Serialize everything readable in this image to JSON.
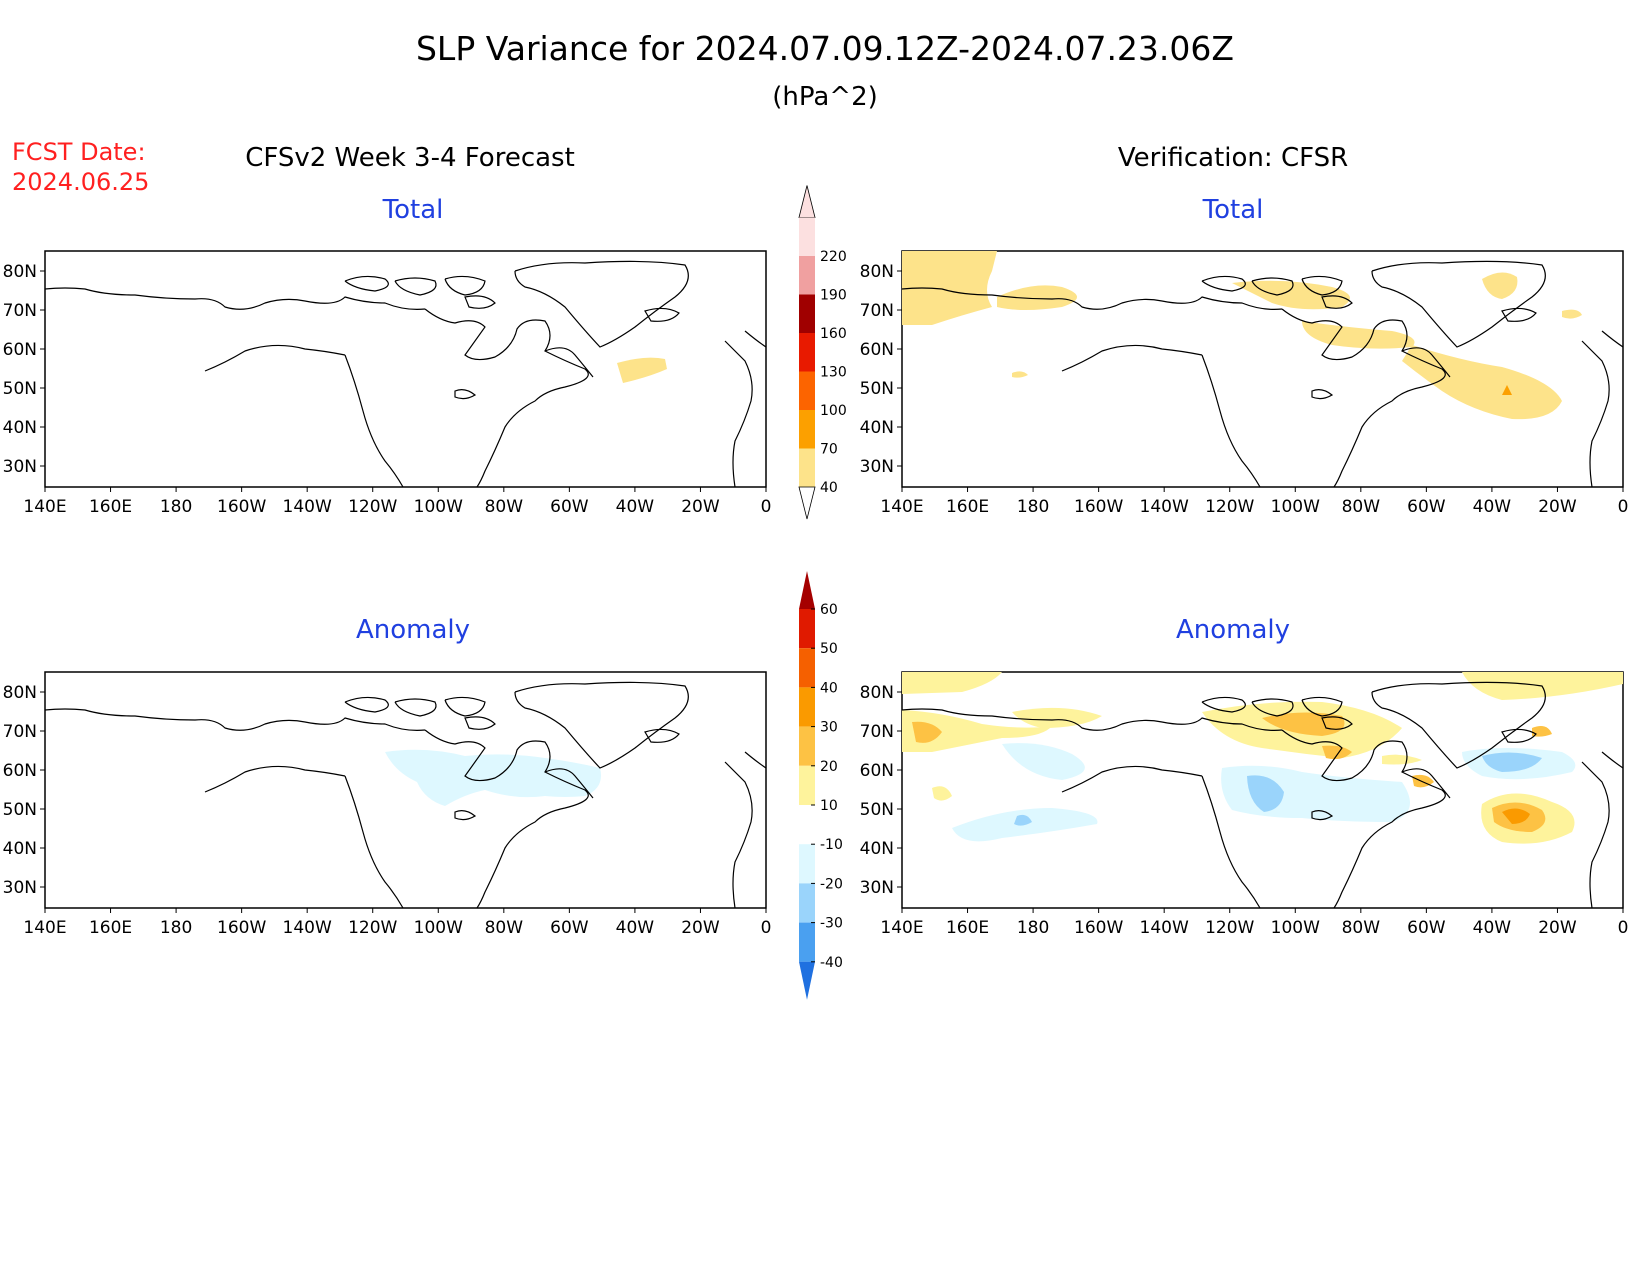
{
  "header": {
    "title": "SLP Variance for 2024.07.09.12Z-2024.07.23.06Z",
    "units": "(hPa^2)",
    "fcst_label": "FCST Date:",
    "fcst_date": "2024.06.25",
    "left_column_title": "CFSv2 Week 3-4 Forecast",
    "right_column_title": "Verification: CFSR"
  },
  "panels": {
    "forecast_total": {
      "subtitle": "Total"
    },
    "verification_total": {
      "subtitle": "Total"
    },
    "forecast_anomaly": {
      "subtitle": "Anomaly"
    },
    "verification_anomaly": {
      "subtitle": "Anomaly"
    }
  },
  "axes": {
    "lon_labels": [
      "140E",
      "160E",
      "180",
      "160W",
      "140W",
      "120W",
      "100W",
      "80W",
      "60W",
      "40W",
      "20W",
      "0"
    ],
    "lat_labels": [
      "80N",
      "70N",
      "60N",
      "50N",
      "40N",
      "30N"
    ]
  },
  "colorbars": {
    "total": {
      "levels": [
        "40",
        "70",
        "100",
        "130",
        "160",
        "190",
        "220"
      ],
      "colors": [
        "#fde38a",
        "#fca000",
        "#fc6400",
        "#e81a00",
        "#a00000",
        "#f0a0a0",
        "#fce0e0"
      ]
    },
    "anomaly": {
      "levels": [
        "60",
        "50",
        "40",
        "30",
        "20",
        "10",
        "-10",
        "-20",
        "-30",
        "-40"
      ],
      "colors": [
        "#a50000",
        "#e01a00",
        "#f56000",
        "#fa9a00",
        "#fdc244",
        "#fef39c",
        "#ffffff",
        "#def8ff",
        "#9ad4fb",
        "#4aa0f0",
        "#1f70e0"
      ]
    }
  },
  "colors": {
    "title_text": "#000000",
    "fcst_text": "#ff2020",
    "subtitle_text": "#2040e0"
  }
}
